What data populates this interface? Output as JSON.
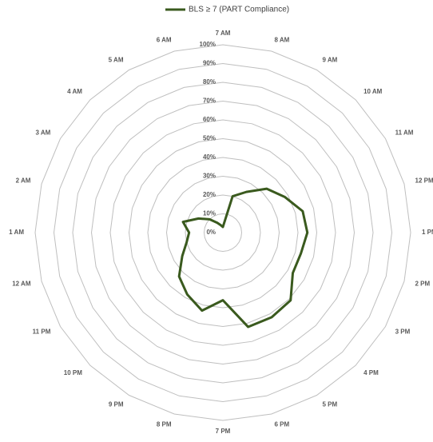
{
  "chart_data": {
    "type": "radar",
    "categories": [
      "7 AM",
      "8 AM",
      "9 AM",
      "10 AM",
      "11 AM",
      "12 PM",
      "1 PM",
      "2 PM",
      "3 PM",
      "4 PM",
      "5 PM",
      "6 PM",
      "7 PM",
      "8 PM",
      "9 PM",
      "10 PM",
      "11 PM",
      "12 AM",
      "1 AM",
      "2 AM",
      "3 AM",
      "4 AM",
      "5 AM",
      "6 AM"
    ],
    "series": [
      {
        "name": "BLS ≥ 7 (PART Compliance)",
        "color": "#3a5a1e",
        "values": [
          3,
          20,
          25,
          33,
          38,
          44,
          45,
          43,
          43,
          51,
          52,
          52,
          36,
          43,
          38,
          33,
          25,
          20,
          18,
          22,
          15,
          10,
          6,
          4
        ]
      }
    ],
    "rlim": [
      0,
      100
    ],
    "rticks": [
      {
        "value": 0,
        "label": "0%"
      },
      {
        "value": 10,
        "label": "10%"
      },
      {
        "value": 20,
        "label": "20%"
      },
      {
        "value": 30,
        "label": "30%"
      },
      {
        "value": 40,
        "label": "40%"
      },
      {
        "value": 50,
        "label": "50%"
      },
      {
        "value": 60,
        "label": "60%"
      },
      {
        "value": 70,
        "label": "70%"
      },
      {
        "value": 80,
        "label": "80%"
      },
      {
        "value": 90,
        "label": "90%"
      },
      {
        "value": 100,
        "label": "100%"
      }
    ],
    "grid": true,
    "legend": "top"
  }
}
